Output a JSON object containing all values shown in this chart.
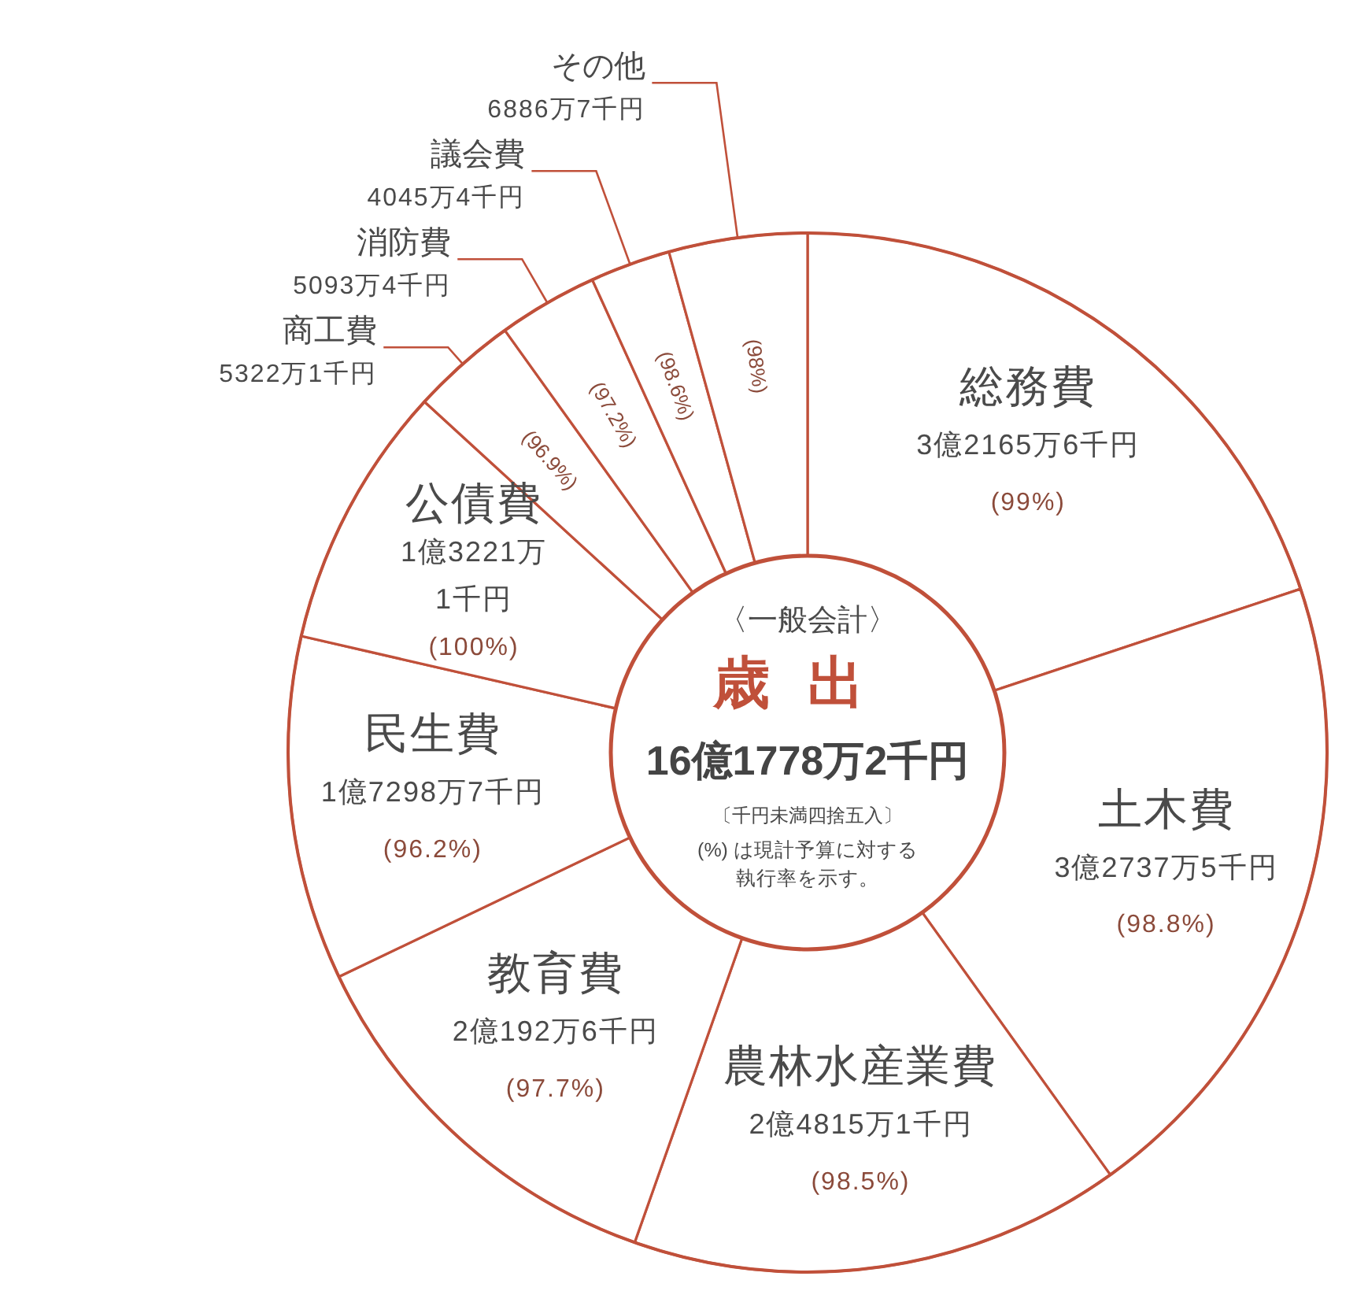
{
  "chart_data": {
    "type": "donut",
    "title": "歳出",
    "subtitle": "〈一般会計〉",
    "categories": [
      "総務費",
      "土木費",
      "農林水産業費",
      "教育費",
      "民生費",
      "公債費",
      "商工費",
      "消防費",
      "議会費",
      "その他"
    ],
    "values": [
      19.9,
      20.2,
      15.3,
      12.5,
      10.7,
      8.2,
      3.3,
      3.1,
      2.5,
      4.3
    ],
    "colors": [
      "#ffffff",
      "#ffffff",
      "#ffffff",
      "#ffffff",
      "#ffffff",
      "#ffffff",
      "#ffffff",
      "#ffffff",
      "#ffffff",
      "#ffffff"
    ],
    "annotations": [
      "16億1778万2千円",
      "〔千円未満四捨五入〕",
      "(%) は現計予算に対する執行率を示す。",
      {
        "text": "3億2165万6千円",
        "x": "総務費"
      },
      {
        "text": "(99%)",
        "x": "総務費"
      },
      {
        "text": "3億2737万5千円",
        "x": "土木費"
      },
      {
        "text": "(98.8%)",
        "x": "土木費"
      },
      {
        "text": "2億4815万1千円",
        "x": "農林水産業費"
      },
      {
        "text": "(98.5%)",
        "x": "農林水産業費"
      },
      {
        "text": "2億192万6千円",
        "x": "教育費"
      },
      {
        "text": "(97.7%)",
        "x": "教育費"
      },
      {
        "text": "1億7298万7千円",
        "x": "民生費"
      },
      {
        "text": "(96.2%)",
        "x": "民生費"
      },
      {
        "text": "1億3221万1千円",
        "x": "公債費"
      },
      {
        "text": "(100%)",
        "x": "公債費"
      },
      {
        "text": "5322万1千円",
        "x": "商工費"
      },
      {
        "text": "(96.9%)",
        "x": "商工費"
      },
      {
        "text": "5093万4千円",
        "x": "消防費"
      },
      {
        "text": "(97.2%)",
        "x": "消防費"
      },
      {
        "text": "4045万4千円",
        "x": "議会費"
      },
      {
        "text": "(98.6%)",
        "x": "議会費"
      },
      {
        "text": "6886万7千円",
        "x": "その他"
      },
      {
        "text": "(98%)",
        "x": "その他"
      }
    ]
  }
}
